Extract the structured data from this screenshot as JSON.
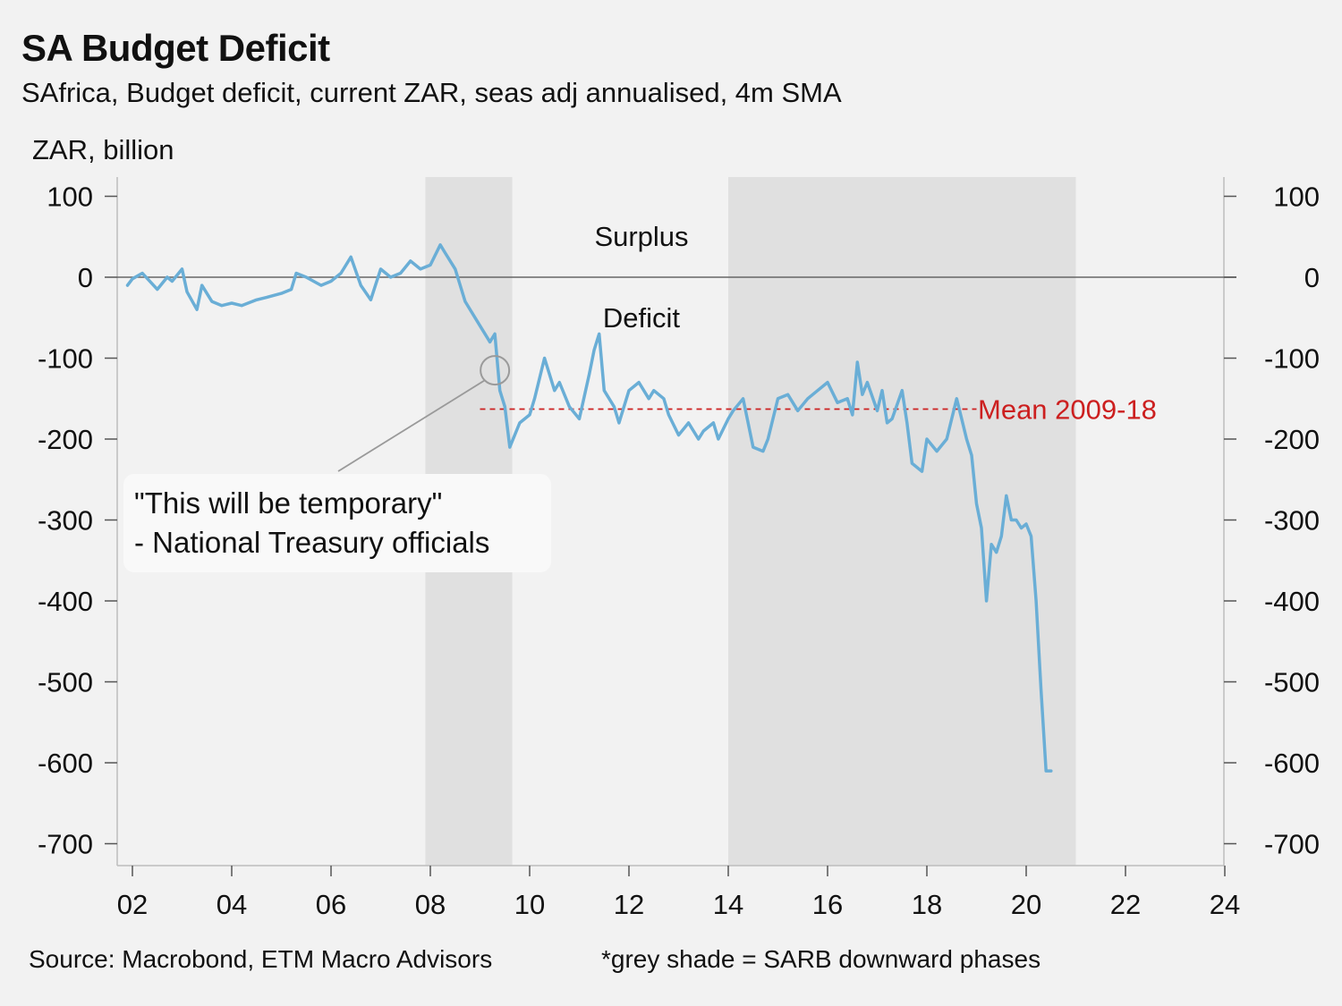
{
  "chart_data": {
    "type": "line",
    "title": "SA Budget Deficit",
    "subtitle": "SAfrica, Budget deficit, current ZAR, seas adj annualised, 4m SMA",
    "ylabel": "ZAR, billion",
    "xlim": [
      2001.8,
      2024
    ],
    "ylim": [
      -730,
      125
    ],
    "x_ticks": [
      2002,
      2004,
      2006,
      2008,
      2010,
      2012,
      2014,
      2016,
      2018,
      2020,
      2022,
      2024
    ],
    "x_tick_labels": [
      "02",
      "04",
      "06",
      "08",
      "10",
      "12",
      "14",
      "16",
      "18",
      "20",
      "22",
      "24"
    ],
    "y_ticks": [
      100,
      0,
      -100,
      -200,
      -300,
      -400,
      -500,
      -600,
      -700
    ],
    "y_tick_labels": [
      "100",
      "0",
      "-100",
      "-200",
      "-300",
      "-400",
      "-500",
      "-600",
      "-700"
    ],
    "grid": false,
    "line_color": "#6aaed6",
    "series": [
      {
        "name": "Budget deficit",
        "x": [
          2001.9,
          2002.0,
          2002.2,
          2002.5,
          2002.7,
          2002.8,
          2003.0,
          2003.1,
          2003.3,
          2003.4,
          2003.6,
          2003.8,
          2004.0,
          2004.2,
          2004.5,
          2004.7,
          2005.0,
          2005.2,
          2005.3,
          2005.5,
          2005.8,
          2006.0,
          2006.2,
          2006.4,
          2006.6,
          2006.8,
          2007.0,
          2007.2,
          2007.4,
          2007.6,
          2007.8,
          2008.0,
          2008.2,
          2008.3,
          2008.5,
          2008.7,
          2008.9,
          2009.0,
          2009.2,
          2009.3,
          2009.4,
          2009.5,
          2009.6,
          2009.8,
          2010.0,
          2010.1,
          2010.3,
          2010.5,
          2010.6,
          2010.8,
          2011.0,
          2011.2,
          2011.3,
          2011.4,
          2011.5,
          2011.7,
          2011.8,
          2012.0,
          2012.2,
          2012.4,
          2012.5,
          2012.7,
          2012.8,
          2013.0,
          2013.2,
          2013.4,
          2013.5,
          2013.7,
          2013.8,
          2014.0,
          2014.1,
          2014.3,
          2014.5,
          2014.7,
          2014.8,
          2015.0,
          2015.2,
          2015.4,
          2015.6,
          2015.8,
          2016.0,
          2016.2,
          2016.4,
          2016.5,
          2016.6,
          2016.7,
          2016.8,
          2017.0,
          2017.1,
          2017.2,
          2017.3,
          2017.5,
          2017.6,
          2017.7,
          2017.9,
          2018.0,
          2018.2,
          2018.4,
          2018.6,
          2018.7,
          2018.8,
          2018.9,
          2019.0,
          2019.1,
          2019.2,
          2019.3,
          2019.4,
          2019.5,
          2019.6,
          2019.7,
          2019.8,
          2019.9,
          2020.0,
          2020.1,
          2020.2,
          2020.3,
          2020.4,
          2020.5
        ],
        "y": [
          -10,
          -2,
          5,
          -15,
          0,
          -5,
          10,
          -18,
          -40,
          -10,
          -30,
          -35,
          -32,
          -35,
          -28,
          -25,
          -20,
          -15,
          5,
          0,
          -10,
          -5,
          5,
          25,
          -10,
          -28,
          10,
          0,
          5,
          20,
          10,
          15,
          40,
          30,
          10,
          -30,
          -50,
          -60,
          -80,
          -70,
          -140,
          -160,
          -210,
          -180,
          -170,
          -150,
          -100,
          -140,
          -130,
          -160,
          -175,
          -120,
          -90,
          -70,
          -140,
          -160,
          -180,
          -140,
          -130,
          -150,
          -140,
          -150,
          -170,
          -195,
          -180,
          -200,
          -190,
          -180,
          -200,
          -175,
          -165,
          -150,
          -210,
          -215,
          -200,
          -150,
          -145,
          -165,
          -150,
          -140,
          -130,
          -155,
          -150,
          -170,
          -105,
          -145,
          -130,
          -165,
          -140,
          -180,
          -175,
          -140,
          -180,
          -230,
          -240,
          -200,
          -215,
          -200,
          -150,
          -175,
          -200,
          -220,
          -280,
          -310,
          -400,
          -330,
          -340,
          -320,
          -270,
          -300,
          -300,
          -310,
          -305,
          -320,
          -400,
          -510,
          -610,
          -610
        ]
      }
    ],
    "mean_line": {
      "label": "Mean 2009-18",
      "value": -163,
      "x_start": 2009,
      "x_end": 2019,
      "color": "#cc1f1f"
    },
    "shaded_periods": [
      [
        2007.9,
        2009.65
      ],
      [
        2014.0,
        2021.0
      ]
    ],
    "annotations": {
      "surplus": "Surplus",
      "deficit": "Deficit",
      "callout_point": {
        "x": 2009.3,
        "y": -115
      }
    }
  },
  "callout": {
    "line1": "\"This will be temporary\"",
    "line2": "- National Treasury officials"
  },
  "footer": {
    "source": "Source: Macrobond, ETM Macro Advisors",
    "note": "*grey shade = SARB downward phases"
  }
}
